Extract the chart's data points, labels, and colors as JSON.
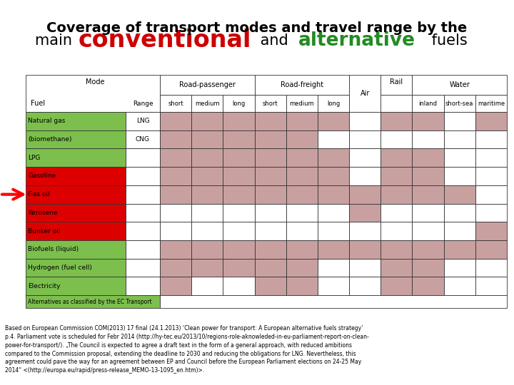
{
  "title_line1": "Coverage of transport modes and travel range by the",
  "title_parts_line2": [
    {
      "text": "main ",
      "color": "#000000",
      "size": 15,
      "bold": false
    },
    {
      "text": "conventional",
      "color": "#cc0000",
      "size": 24,
      "bold": true
    },
    {
      "text": " and ",
      "color": "#000000",
      "size": 15,
      "bold": false
    },
    {
      "text": "alternative",
      "color": "#228B22",
      "size": 19,
      "bold": true
    },
    {
      "text": " fuels",
      "color": "#000000",
      "size": 15,
      "bold": false
    }
  ],
  "row_labels": [
    "Natural gas",
    "(biomethane)",
    "LPG",
    "Gasoline",
    "Gas oil",
    "Kerosene",
    "Bunker oil",
    "Biofuels (liquid)",
    "Hydrogen (fuel cell)",
    "Electricity"
  ],
  "row_sublabels": [
    "LNG",
    "CNG",
    "",
    "",
    "",
    "",
    "",
    "",
    "",
    ""
  ],
  "fuel_type": [
    "alt",
    "alt",
    "alt",
    "conv",
    "conv",
    "conv",
    "conv",
    "alt",
    "alt",
    "alt"
  ],
  "table_data": [
    [
      1,
      1,
      1,
      1,
      1,
      1,
      0,
      1,
      1,
      0,
      1
    ],
    [
      1,
      1,
      1,
      1,
      1,
      0,
      0,
      0,
      0,
      0,
      0
    ],
    [
      1,
      1,
      1,
      1,
      1,
      1,
      0,
      1,
      1,
      0,
      0
    ],
    [
      1,
      1,
      1,
      1,
      1,
      1,
      0,
      1,
      1,
      0,
      0
    ],
    [
      1,
      1,
      1,
      1,
      1,
      1,
      1,
      1,
      1,
      1,
      0
    ],
    [
      0,
      0,
      0,
      0,
      0,
      0,
      1,
      0,
      0,
      0,
      0
    ],
    [
      0,
      0,
      0,
      0,
      0,
      0,
      0,
      0,
      0,
      0,
      1
    ],
    [
      1,
      1,
      1,
      1,
      1,
      1,
      1,
      1,
      1,
      1,
      1
    ],
    [
      1,
      1,
      1,
      1,
      1,
      0,
      0,
      1,
      1,
      0,
      0
    ],
    [
      1,
      0,
      0,
      1,
      1,
      0,
      0,
      1,
      1,
      0,
      0
    ]
  ],
  "pink_color": "#c9a0a0",
  "green_color": "#7cbf4d",
  "red_color": "#dd0000",
  "white_color": "#ffffff",
  "note_text": "Alternatives as classified by the EC Transport",
  "footer_text": "Based on European Commission COM(2013) 17 final (24.1.2013) ‘Clean power for transport: A European alternative fuels strategy’\np.4. Parliament vote is scheduled for Febr 2014 (http://hy-tec.eu/2013/10/regions-role-aknowleded-in-eu-parliament-report-on-clean-\npower-for-transport/). „The Council is expected to agree a draft text in the form of a general approach, with reduced ambitions\ncompared to the Commission proposal, extending the deadline to 2030 and reducing the obligations for LNG. Nevertheless, this\nagreement could pave the way for an agreement between EP and Council before the European Parliament elections on 24-25 May\n2014“ <(http://europa.eu/rapid/press-release_MEMO-13-1095_en.htm)>.",
  "arrow_row": 4,
  "fig_width": 7.2,
  "fig_height": 5.4,
  "fig_dpi": 100
}
